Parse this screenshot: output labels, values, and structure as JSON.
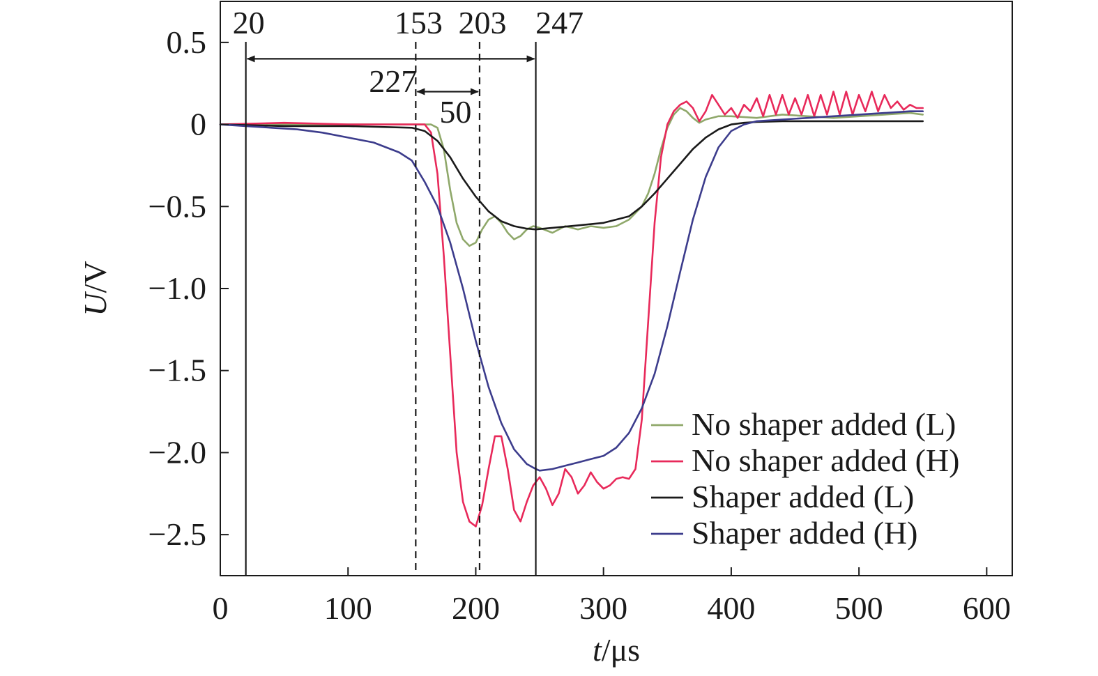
{
  "chart_data": {
    "type": "line",
    "title": "",
    "xlabel": {
      "var": "t",
      "unit": "/μs"
    },
    "ylabel": {
      "var": "U",
      "unit": "/V"
    },
    "xlim": [
      0,
      620
    ],
    "ylim": [
      -2.75,
      0.75
    ],
    "xticks": [
      0,
      100,
      200,
      300,
      400,
      500,
      600
    ],
    "xtick_labels": [
      "0",
      "100",
      "200",
      "300",
      "400",
      "500",
      "600"
    ],
    "yticks": [
      0.5,
      0,
      -0.5,
      -1.0,
      -1.5,
      -2.0,
      -2.5
    ],
    "ytick_labels": [
      "0.5",
      "0",
      "−0.5",
      "−1.0",
      "−1.5",
      "−2.0",
      "−2.5"
    ],
    "grid": false,
    "legend_position": "bottom-right",
    "vertical_markers": [
      {
        "x": 20,
        "label": "20",
        "style": "solid"
      },
      {
        "x": 153,
        "label": "153",
        "style": "dashed"
      },
      {
        "x": 203,
        "label": "203",
        "style": "dashed"
      },
      {
        "x": 247,
        "label": "247",
        "style": "solid"
      }
    ],
    "interval_annotations": [
      {
        "from": 20,
        "to": 247,
        "y": 0.4,
        "label": "227"
      },
      {
        "from": 153,
        "to": 203,
        "y": 0.2,
        "label": "50"
      }
    ],
    "series": [
      {
        "name": "No shaper added (L)",
        "color": "#8fa86a",
        "x": [
          0,
          50,
          100,
          140,
          160,
          165,
          170,
          175,
          180,
          185,
          190,
          195,
          200,
          205,
          210,
          215,
          220,
          225,
          230,
          235,
          240,
          245,
          250,
          260,
          270,
          280,
          290,
          300,
          310,
          320,
          330,
          335,
          340,
          345,
          350,
          355,
          360,
          365,
          370,
          375,
          380,
          390,
          400,
          420,
          440,
          460,
          480,
          500,
          520,
          540,
          550
        ],
        "y": [
          0,
          0,
          0,
          0,
          0,
          0,
          -0.02,
          -0.15,
          -0.4,
          -0.6,
          -0.7,
          -0.74,
          -0.72,
          -0.64,
          -0.58,
          -0.56,
          -0.6,
          -0.66,
          -0.7,
          -0.68,
          -0.64,
          -0.62,
          -0.63,
          -0.66,
          -0.62,
          -0.64,
          -0.62,
          -0.63,
          -0.62,
          -0.58,
          -0.5,
          -0.42,
          -0.3,
          -0.15,
          -0.02,
          0.06,
          0.1,
          0.08,
          0.04,
          0.01,
          0.03,
          0.05,
          0.05,
          0.04,
          0.06,
          0.05,
          0.04,
          0.05,
          0.06,
          0.07,
          0.06
        ]
      },
      {
        "name": "No shaper added (H)",
        "color": "#e8295a",
        "x": [
          0,
          50,
          100,
          150,
          160,
          165,
          170,
          175,
          180,
          185,
          190,
          195,
          200,
          205,
          210,
          215,
          220,
          225,
          230,
          235,
          240,
          245,
          250,
          255,
          260,
          265,
          270,
          275,
          280,
          285,
          290,
          295,
          300,
          305,
          310,
          315,
          320,
          325,
          330,
          335,
          340,
          345,
          350,
          355,
          360,
          365,
          370,
          375,
          380,
          385,
          390,
          395,
          400,
          405,
          410,
          415,
          420,
          425,
          430,
          435,
          440,
          445,
          450,
          455,
          460,
          465,
          470,
          475,
          480,
          485,
          490,
          495,
          500,
          505,
          510,
          515,
          520,
          525,
          530,
          535,
          540,
          545,
          550
        ],
        "y": [
          0,
          0.01,
          0,
          0,
          0,
          -0.05,
          -0.3,
          -0.8,
          -1.4,
          -2.0,
          -2.3,
          -2.42,
          -2.45,
          -2.32,
          -2.1,
          -1.9,
          -1.9,
          -2.1,
          -2.35,
          -2.42,
          -2.3,
          -2.2,
          -2.15,
          -2.22,
          -2.32,
          -2.25,
          -2.1,
          -2.15,
          -2.25,
          -2.2,
          -2.12,
          -2.18,
          -2.22,
          -2.2,
          -2.16,
          -2.15,
          -2.16,
          -2.1,
          -1.8,
          -1.2,
          -0.6,
          -0.2,
          0,
          0.08,
          0.12,
          0.14,
          0.1,
          0.02,
          0.08,
          0.18,
          0.12,
          0.06,
          0.1,
          0.04,
          0.12,
          0.08,
          0.16,
          0.05,
          0.18,
          0.06,
          0.18,
          0.06,
          0.16,
          0.06,
          0.18,
          0.05,
          0.18,
          0.06,
          0.2,
          0.06,
          0.2,
          0.06,
          0.18,
          0.08,
          0.2,
          0.08,
          0.18,
          0.1,
          0.14,
          0.09,
          0.12,
          0.1,
          0.1
        ]
      },
      {
        "name": "Shaper added (L)",
        "color": "#1a1a1a",
        "x": [
          0,
          50,
          100,
          150,
          160,
          170,
          180,
          190,
          200,
          210,
          220,
          230,
          240,
          247,
          260,
          280,
          300,
          320,
          330,
          340,
          350,
          360,
          370,
          380,
          390,
          400,
          410,
          420,
          440,
          460,
          480,
          500,
          520,
          540,
          550
        ],
        "y": [
          0,
          -0.01,
          -0.01,
          -0.02,
          -0.04,
          -0.1,
          -0.2,
          -0.33,
          -0.44,
          -0.53,
          -0.59,
          -0.62,
          -0.635,
          -0.64,
          -0.63,
          -0.615,
          -0.6,
          -0.56,
          -0.5,
          -0.42,
          -0.33,
          -0.24,
          -0.15,
          -0.08,
          -0.03,
          0.0,
          0.01,
          0.015,
          0.02,
          0.02,
          0.02,
          0.02,
          0.02,
          0.02,
          0.02
        ]
      },
      {
        "name": "Shaper added (H)",
        "color": "#3c3c8c",
        "x": [
          0,
          20,
          40,
          60,
          80,
          100,
          120,
          140,
          150,
          160,
          170,
          180,
          190,
          200,
          210,
          220,
          230,
          240,
          247,
          250,
          260,
          270,
          280,
          290,
          300,
          310,
          320,
          330,
          340,
          350,
          360,
          370,
          380,
          390,
          400,
          410,
          420,
          440,
          460,
          480,
          500,
          520,
          540,
          550
        ],
        "y": [
          0,
          -0.01,
          -0.02,
          -0.03,
          -0.05,
          -0.08,
          -0.11,
          -0.17,
          -0.22,
          -0.35,
          -0.5,
          -0.72,
          -1.0,
          -1.32,
          -1.6,
          -1.82,
          -1.98,
          -2.07,
          -2.1,
          -2.11,
          -2.1,
          -2.08,
          -2.06,
          -2.04,
          -2.02,
          -1.97,
          -1.88,
          -1.73,
          -1.52,
          -1.23,
          -0.9,
          -0.58,
          -0.32,
          -0.14,
          -0.04,
          0.0,
          0.02,
          0.03,
          0.04,
          0.05,
          0.06,
          0.07,
          0.08,
          0.08
        ]
      }
    ]
  }
}
